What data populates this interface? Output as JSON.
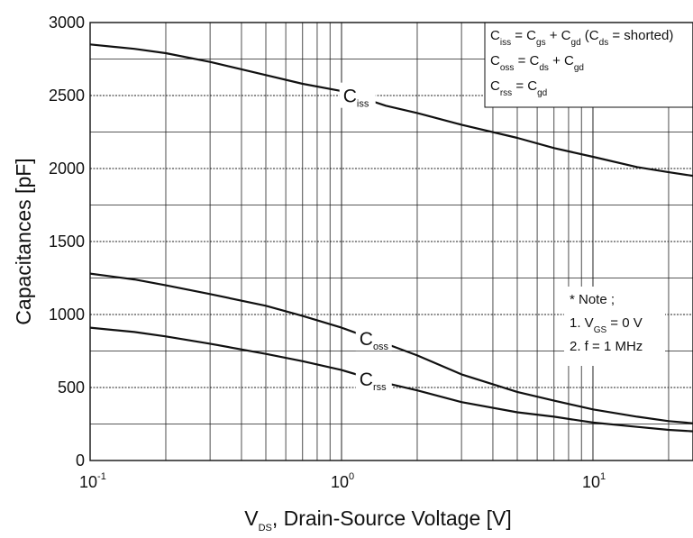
{
  "chart_data": {
    "type": "line",
    "x_scale": "log",
    "xlim": [
      0.1,
      25
    ],
    "ylim": [
      0,
      3000
    ],
    "grid": true,
    "ylabel": "Capacitances [pF]",
    "xlabel": {
      "prefix": "V",
      "sub": "DS",
      "suffix": ", Drain-Source Voltage [V]"
    },
    "y_ticks": [
      0,
      500,
      1000,
      1500,
      2000,
      2500,
      3000
    ],
    "y_tick_labels": [
      "0",
      "500",
      "1000",
      "1500",
      "2000",
      "2500",
      "3000"
    ],
    "x_ticks": [
      {
        "value": 0.1,
        "base": "10",
        "exp": "-1"
      },
      {
        "value": 1,
        "base": "10",
        "exp": "0"
      },
      {
        "value": 10,
        "base": "10",
        "exp": "1"
      }
    ],
    "series": [
      {
        "name": "Ciss",
        "label_main": "C",
        "label_sub": "iss",
        "label_at": 1.12,
        "x": [
          0.1,
          0.15,
          0.2,
          0.3,
          0.5,
          0.7,
          1,
          1.5,
          2,
          3,
          5,
          7,
          10,
          15,
          20,
          25
        ],
        "y": [
          2850,
          2820,
          2790,
          2730,
          2640,
          2580,
          2530,
          2430,
          2380,
          2300,
          2210,
          2140,
          2080,
          2010,
          1975,
          1950
        ]
      },
      {
        "name": "Coss",
        "label_main": "C",
        "label_sub": "oss",
        "label_at": 1.3,
        "x": [
          0.1,
          0.15,
          0.2,
          0.3,
          0.5,
          0.7,
          1,
          1.5,
          2,
          3,
          5,
          7,
          10,
          15,
          20,
          25
        ],
        "y": [
          1280,
          1240,
          1200,
          1140,
          1060,
          990,
          910,
          800,
          720,
          590,
          470,
          410,
          350,
          300,
          270,
          255
        ]
      },
      {
        "name": "Crss",
        "label_main": "C",
        "label_sub": "rss",
        "label_at": 1.3,
        "x": [
          0.1,
          0.15,
          0.2,
          0.3,
          0.5,
          0.7,
          1,
          1.5,
          2,
          3,
          5,
          7,
          10,
          15,
          20,
          25
        ],
        "y": [
          910,
          880,
          850,
          800,
          730,
          680,
          620,
          530,
          480,
          400,
          330,
          300,
          260,
          230,
          210,
          200
        ]
      }
    ],
    "legend": {
      "placement": "top-right",
      "lines": [
        [
          {
            "t": "C"
          },
          {
            "t": "iss",
            "s": 1
          },
          {
            "t": " = C"
          },
          {
            "t": "gs",
            "s": 1
          },
          {
            "t": " + C"
          },
          {
            "t": "gd",
            "s": 1
          },
          {
            "t": " (C"
          },
          {
            "t": "ds",
            "s": 1
          },
          {
            "t": " = shorted)"
          }
        ],
        [
          {
            "t": "C"
          },
          {
            "t": "oss",
            "s": 1
          },
          {
            "t": " = C"
          },
          {
            "t": "ds",
            "s": 1
          },
          {
            "t": " + C"
          },
          {
            "t": "gd",
            "s": 1
          }
        ],
        [
          {
            "t": "C"
          },
          {
            "t": "rss",
            "s": 1
          },
          {
            "t": " = C"
          },
          {
            "t": "gd",
            "s": 1
          }
        ]
      ]
    },
    "note": {
      "placement": "right",
      "lines": [
        [
          {
            "t": "* Note ;"
          }
        ],
        [
          {
            "t": "1. V"
          },
          {
            "t": "GS",
            "s": 1
          },
          {
            "t": " = 0 V"
          }
        ],
        [
          {
            "t": "2. f = 1 MHz"
          }
        ]
      ]
    }
  }
}
